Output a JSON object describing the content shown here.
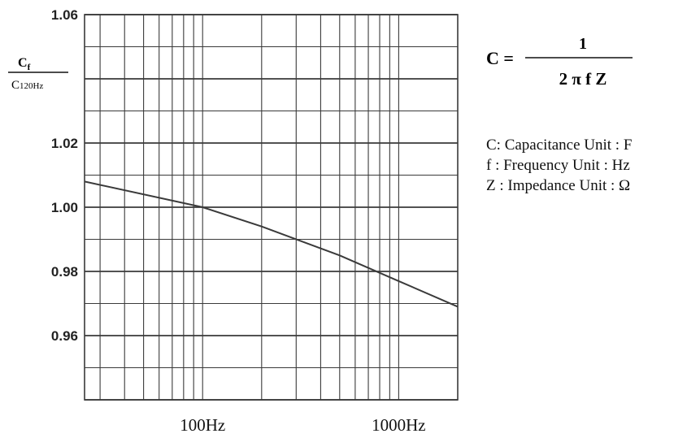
{
  "chart_data": {
    "type": "line",
    "title": "",
    "xlabel": "",
    "ylabel": {
      "numerator": "C",
      "numerator_sub": "f",
      "denominator": "C",
      "denominator_sub": "120Hz"
    },
    "x_scale": "log",
    "xlim": [
      25,
      2000
    ],
    "ylim": [
      0.94,
      1.06
    ],
    "x_ticks": [
      {
        "value": 100,
        "label": "100Hz"
      },
      {
        "value": 1000,
        "label": "1000Hz"
      }
    ],
    "y_ticks": [
      {
        "value": 1.06,
        "label": "1.06"
      },
      {
        "value": 1.02,
        "label": "1.02"
      },
      {
        "value": 1.0,
        "label": "1.00"
      },
      {
        "value": 0.98,
        "label": "0.98"
      },
      {
        "value": 0.96,
        "label": "0.96"
      }
    ],
    "grid": true,
    "series": [
      {
        "x": [
          25,
          100,
          200,
          500,
          1000,
          2000
        ],
        "y": [
          1.008,
          1.0,
          0.994,
          0.985,
          0.977,
          0.969
        ]
      }
    ],
    "line_color": "#3a3a3a"
  },
  "formula": {
    "lhs": "C =",
    "numerator": "1",
    "denominator": "2 π f Z"
  },
  "legend": [
    "C: Capacitance Unit : F",
    "f : Frequency Unit : Hz",
    "Z : Impedance Unit : Ω"
  ]
}
